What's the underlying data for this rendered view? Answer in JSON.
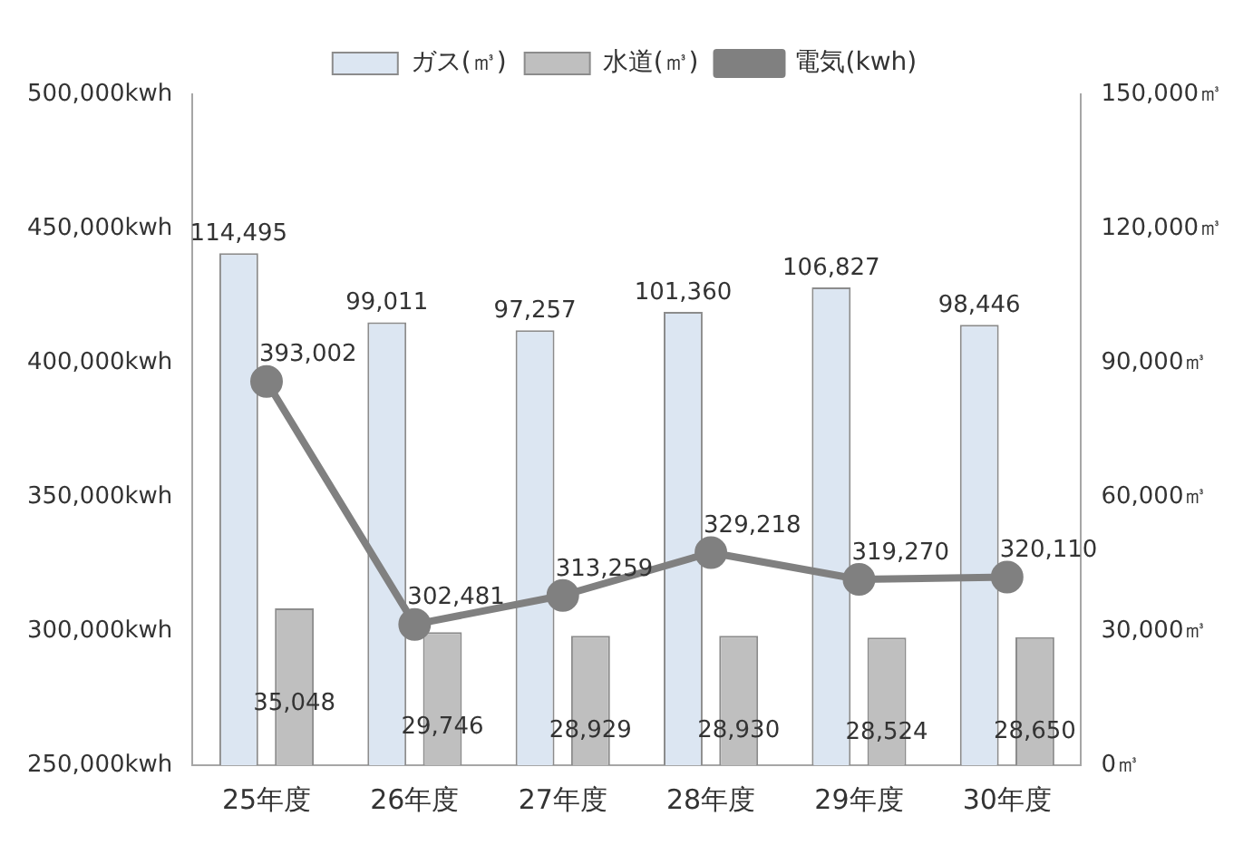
{
  "chart_data": {
    "type": "bar",
    "categories": [
      "25年度",
      "26年度",
      "27年度",
      "28年度",
      "29年度",
      "30年度"
    ],
    "series": [
      {
        "name": "ガス(㎥)",
        "color": "#dce6f2",
        "axis": "y2",
        "values": [
          114495,
          99011,
          97257,
          101360,
          106827,
          98446
        ],
        "value_labels": [
          "114,495",
          "99,011",
          "97,257",
          "101,360",
          "106,827",
          "98,446"
        ]
      },
      {
        "name": "水道(㎥)",
        "color": "#bfbfbf",
        "axis": "y2",
        "values": [
          35048,
          29746,
          28929,
          28930,
          28524,
          28650
        ],
        "value_labels": [
          "35,048",
          "29,746",
          "28,929",
          "28,930",
          "28,524",
          "28,650"
        ]
      },
      {
        "name": "電気(kwh)",
        "type": "line",
        "color": "#808080",
        "axis": "y",
        "marker": "circle",
        "values": [
          393002,
          302481,
          313259,
          329218,
          319270,
          320110
        ],
        "value_labels": [
          "393,002",
          "302,481",
          "313,259",
          "329,218",
          "319,270",
          "320,110"
        ]
      }
    ],
    "ylim": [
      250000,
      500000
    ],
    "yticks": [
      {
        "value": 250000,
        "label": "250,000kwh"
      },
      {
        "value": 300000,
        "label": "300,000kwh"
      },
      {
        "value": 350000,
        "label": "350,000kwh"
      },
      {
        "value": 400000,
        "label": "400,000kwh"
      },
      {
        "value": 450000,
        "label": "450,000kwh"
      },
      {
        "value": 500000,
        "label": "500,000kwh"
      }
    ],
    "y2lim": [
      0,
      150000
    ],
    "y2ticks": [
      {
        "value": 0,
        "label": "0㎥"
      },
      {
        "value": 30000,
        "label": "30,000㎥"
      },
      {
        "value": 60000,
        "label": "60,000㎥"
      },
      {
        "value": 90000,
        "label": "90,000㎥"
      },
      {
        "value": 120000,
        "label": "120,000㎥"
      },
      {
        "value": 150000,
        "label": "150,000㎥"
      }
    ],
    "legend": "top",
    "grid": false
  }
}
